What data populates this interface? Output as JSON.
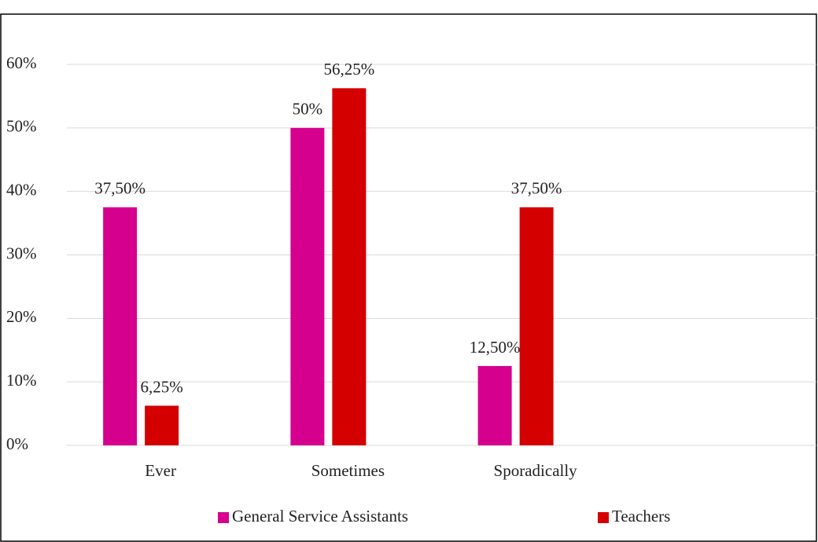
{
  "chart_data": {
    "type": "bar",
    "categories": [
      "Ever",
      "Sometimes",
      "Sporadically",
      null
    ],
    "series": [
      {
        "name": "General Service Assistants",
        "color": "#d6008f",
        "values": [
          37.5,
          50,
          12.5,
          null
        ],
        "value_labels": [
          "37,50%",
          "50%",
          "12,50%",
          null
        ]
      },
      {
        "name": "Teachers",
        "color": "#d40000",
        "values": [
          6.25,
          56.25,
          37.5,
          null
        ],
        "value_labels": [
          "6,25%",
          "56,25%",
          "37,50%",
          null
        ]
      }
    ],
    "ylim": [
      0,
      60
    ],
    "yticks": [
      {
        "value": 0,
        "label": "0%"
      },
      {
        "value": 10,
        "label": "10%"
      },
      {
        "value": 20,
        "label": "20%"
      },
      {
        "value": 30,
        "label": "30%"
      },
      {
        "value": 40,
        "label": "40%"
      },
      {
        "value": 50,
        "label": "50%"
      },
      {
        "value": 60,
        "label": "60%"
      }
    ],
    "grid": true,
    "legend": "bottom"
  }
}
